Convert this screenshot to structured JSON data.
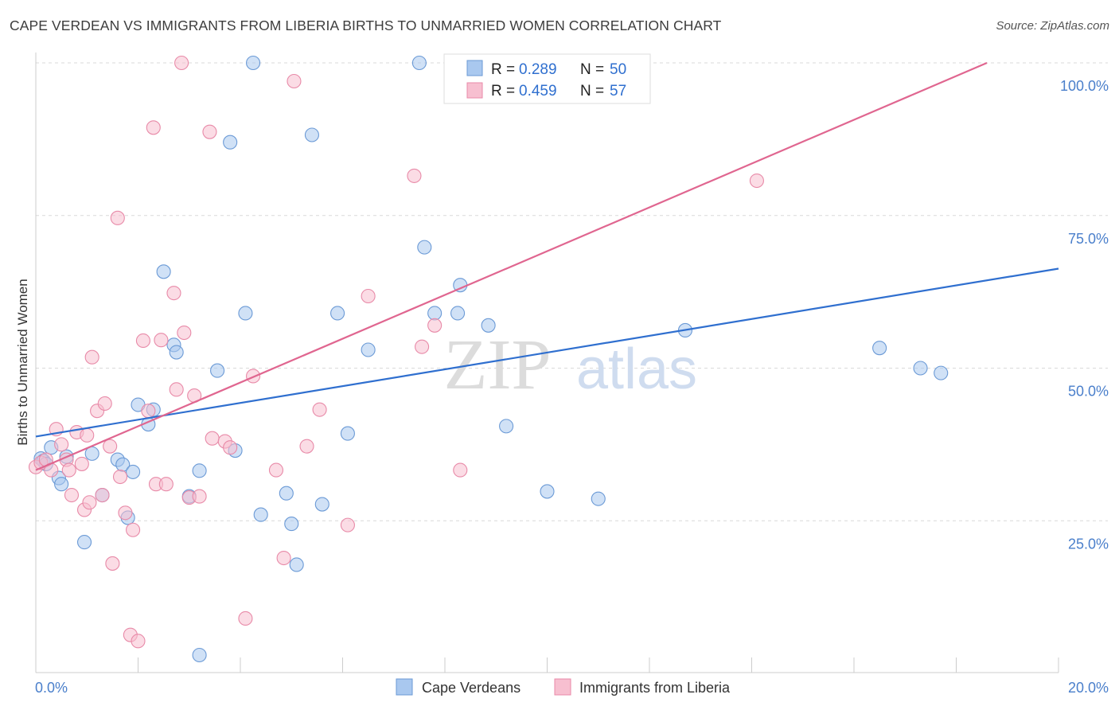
{
  "title": "CAPE VERDEAN VS IMMIGRANTS FROM LIBERIA BIRTHS TO UNMARRIED WOMEN CORRELATION CHART",
  "source": "Source: ZipAtlas.com",
  "watermark": {
    "part1": "ZIP",
    "part2": "atlas"
  },
  "colors": {
    "blue_fill": "#a9c8ef",
    "blue_stroke": "#6b9ad6",
    "blue_line": "#2f6fcf",
    "pink_fill": "#f7bfd0",
    "pink_stroke": "#e88aa8",
    "pink_line": "#e06690",
    "tick_label": "#4a7fcb",
    "grid": "#d9d9d9",
    "axis": "#cccccc"
  },
  "stats_box": {
    "rows": [
      {
        "r_label": "R =",
        "r_value": "0.289",
        "n_label": "N =",
        "n_value": "50",
        "series": "blue"
      },
      {
        "r_label": "R =",
        "r_value": "0.459",
        "n_label": "N =",
        "n_value": "57",
        "series": "pink"
      }
    ]
  },
  "chart_data": {
    "type": "scatter",
    "title": "CAPE VERDEAN VS IMMIGRANTS FROM LIBERIA BIRTHS TO UNMARRIED WOMEN CORRELATION CHART",
    "xlabel": "",
    "ylabel": "Births to Unmarried Women",
    "xlim": [
      0,
      20
    ],
    "ylim": [
      0,
      104
    ],
    "x_tick_labels": [
      {
        "value": 0,
        "label": "0.0%"
      },
      {
        "value": 20,
        "label": "20.0%"
      }
    ],
    "x_minor_ticks": [
      2,
      4,
      6,
      8,
      10,
      12,
      14,
      16,
      18
    ],
    "y_ticks": [
      {
        "value": 25,
        "label": "25.0%"
      },
      {
        "value": 50,
        "label": "50.0%"
      },
      {
        "value": 75,
        "label": "75.0%"
      },
      {
        "value": 100,
        "label": "100.0%"
      }
    ],
    "grid": true,
    "legend_position": "bottom-center",
    "series": [
      {
        "name": "Cape Verdeans",
        "color": "blue",
        "r": 0.289,
        "n": 50,
        "trend": {
          "x": [
            0,
            20
          ],
          "y": [
            38.8,
            66.3
          ]
        },
        "points": [
          [
            0.1,
            35.2
          ],
          [
            0.15,
            34.8
          ],
          [
            0.2,
            34.3
          ],
          [
            0.3,
            37
          ],
          [
            0.45,
            32
          ],
          [
            0.5,
            31
          ],
          [
            0.6,
            35.5
          ],
          [
            0.95,
            21.5
          ],
          [
            1.1,
            36
          ],
          [
            1.3,
            29.2
          ],
          [
            1.6,
            35
          ],
          [
            1.7,
            34.2
          ],
          [
            1.8,
            25.5
          ],
          [
            1.9,
            33
          ],
          [
            2,
            44
          ],
          [
            2.2,
            40.8
          ],
          [
            2.3,
            43.2
          ],
          [
            2.5,
            65.8
          ],
          [
            2.7,
            53.8
          ],
          [
            2.75,
            52.6
          ],
          [
            3,
            29
          ],
          [
            3.2,
            33.2
          ],
          [
            3.55,
            49.6
          ],
          [
            3.8,
            87
          ],
          [
            3.9,
            36.5
          ],
          [
            4.1,
            59
          ],
          [
            4.25,
            100
          ],
          [
            4.4,
            26
          ],
          [
            4.9,
            29.5
          ],
          [
            5,
            24.5
          ],
          [
            5.1,
            17.8
          ],
          [
            5.4,
            88.2
          ],
          [
            5.6,
            27.7
          ],
          [
            5.9,
            59
          ],
          [
            6.1,
            39.3
          ],
          [
            6.5,
            53
          ],
          [
            7.5,
            100
          ],
          [
            7.6,
            69.8
          ],
          [
            7.8,
            59
          ],
          [
            8.25,
            59
          ],
          [
            8.3,
            63.6
          ],
          [
            8.85,
            57
          ],
          [
            9.2,
            40.5
          ],
          [
            10,
            29.8
          ],
          [
            11,
            28.6
          ],
          [
            12.7,
            56.2
          ],
          [
            16.5,
            53.3
          ],
          [
            17.3,
            50
          ],
          [
            17.7,
            49.2
          ],
          [
            3.2,
            3
          ]
        ]
      },
      {
        "name": "Immigrants from Liberia",
        "color": "pink",
        "r": 0.459,
        "n": 57,
        "trend": {
          "x": [
            0,
            18.6
          ],
          "y": [
            33.3,
            100
          ]
        },
        "points": [
          [
            0,
            33.8
          ],
          [
            0.1,
            34.5
          ],
          [
            0.2,
            35
          ],
          [
            0.3,
            33.3
          ],
          [
            0.4,
            40
          ],
          [
            0.5,
            37.5
          ],
          [
            0.6,
            35
          ],
          [
            0.65,
            33.3
          ],
          [
            0.7,
            29.2
          ],
          [
            0.8,
            39.5
          ],
          [
            0.9,
            34.3
          ],
          [
            0.95,
            26.8
          ],
          [
            1.0,
            39
          ],
          [
            1.05,
            28
          ],
          [
            1.1,
            51.8
          ],
          [
            1.2,
            43
          ],
          [
            1.3,
            29.2
          ],
          [
            1.35,
            44.2
          ],
          [
            1.45,
            37.2
          ],
          [
            1.5,
            18
          ],
          [
            1.65,
            32.2
          ],
          [
            1.75,
            26.3
          ],
          [
            1.85,
            6.3
          ],
          [
            1.9,
            23.5
          ],
          [
            2.0,
            5.3
          ],
          [
            2.1,
            54.5
          ],
          [
            2.2,
            43
          ],
          [
            2.3,
            89.4
          ],
          [
            2.35,
            31
          ],
          [
            2.45,
            54.6
          ],
          [
            2.55,
            31
          ],
          [
            2.7,
            62.3
          ],
          [
            2.75,
            46.5
          ],
          [
            2.85,
            100
          ],
          [
            2.9,
            55.8
          ],
          [
            3.0,
            28.8
          ],
          [
            3.1,
            45.5
          ],
          [
            3.2,
            29
          ],
          [
            3.4,
            88.7
          ],
          [
            3.45,
            38.5
          ],
          [
            3.7,
            38
          ],
          [
            3.8,
            37
          ],
          [
            4.1,
            9
          ],
          [
            4.25,
            48.7
          ],
          [
            4.7,
            33.3
          ],
          [
            4.85,
            18.9
          ],
          [
            5.05,
            97
          ],
          [
            5.3,
            37.2
          ],
          [
            5.55,
            43.2
          ],
          [
            6.1,
            24.3
          ],
          [
            6.5,
            61.8
          ],
          [
            7.4,
            81.5
          ],
          [
            7.55,
            53.5
          ],
          [
            7.8,
            57
          ],
          [
            8.3,
            33.3
          ],
          [
            14.1,
            80.7
          ],
          [
            1.6,
            74.6
          ]
        ]
      }
    ]
  },
  "legend": [
    {
      "label": "Cape Verdeans",
      "color": "blue"
    },
    {
      "label": "Immigrants from Liberia",
      "color": "pink"
    }
  ]
}
